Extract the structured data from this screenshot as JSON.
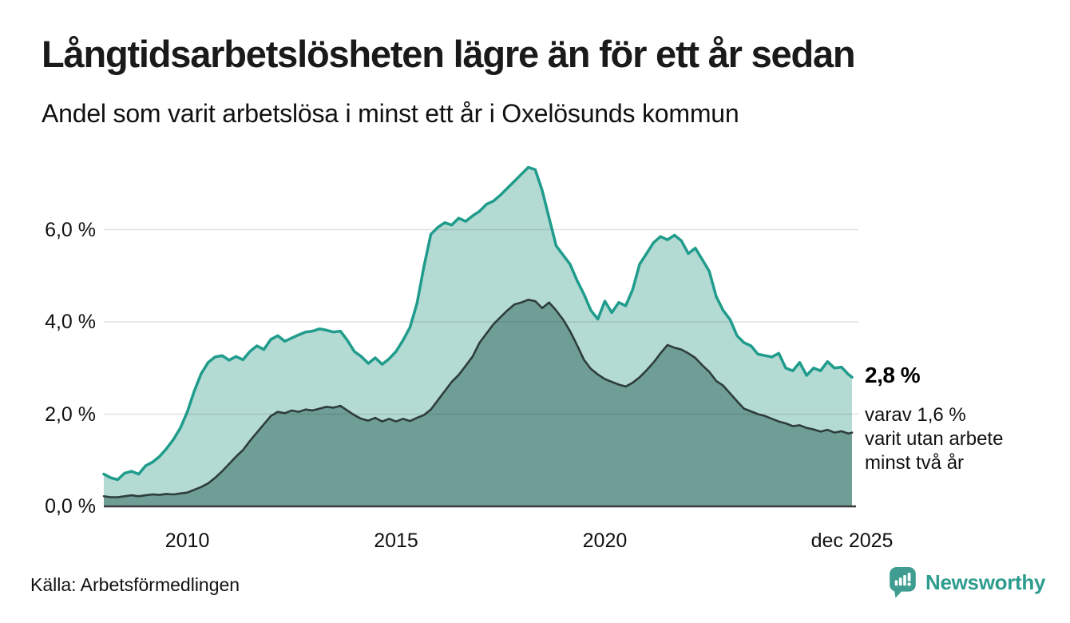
{
  "header": {
    "title": "Långtidsarbetslösheten lägre än för ett år sedan",
    "subtitle": "Andel som varit arbetslösa i minst ett år i Oxelösunds kommun"
  },
  "chart_data": {
    "type": "area",
    "title": "Långtidsarbetslösheten lägre än för ett år sedan",
    "subtitle": "Andel som varit arbetslösa i minst ett år i Oxelösunds kommun",
    "unit": "%",
    "x_start_year": 2008,
    "x_step_months": 2,
    "xlim": [
      2008,
      2025.92
    ],
    "ylim": [
      0,
      7.5
    ],
    "grid": true,
    "yticks": [
      {
        "value": 0,
        "label": "0,0 %"
      },
      {
        "value": 2,
        "label": "2,0 %"
      },
      {
        "value": 4,
        "label": "4,0 %"
      },
      {
        "value": 6,
        "label": "6,0 %"
      }
    ],
    "xticks": [
      {
        "year": 2010,
        "label": "2010"
      },
      {
        "year": 2015,
        "label": "2015"
      },
      {
        "year": 2020,
        "label": "2020"
      },
      {
        "year": 2025.92,
        "label": "dec 2025"
      }
    ],
    "series": [
      {
        "name": "Andel arbetslösa minst ett år",
        "stroke": "#1F9C8C",
        "fill": "#B4DAD4",
        "stroke_width": 3.5,
        "values": [
          0.7,
          0.62,
          0.58,
          0.72,
          0.76,
          0.7,
          0.88,
          0.96,
          1.08,
          1.25,
          1.45,
          1.7,
          2.05,
          2.5,
          2.88,
          3.12,
          3.24,
          3.27,
          3.17,
          3.25,
          3.18,
          3.36,
          3.48,
          3.4,
          3.62,
          3.7,
          3.58,
          3.65,
          3.72,
          3.78,
          3.8,
          3.85,
          3.82,
          3.78,
          3.8,
          3.6,
          3.36,
          3.25,
          3.1,
          3.22,
          3.08,
          3.2,
          3.36,
          3.6,
          3.88,
          4.4,
          5.2,
          5.9,
          6.05,
          6.15,
          6.1,
          6.25,
          6.18,
          6.3,
          6.4,
          6.55,
          6.62,
          6.75,
          6.9,
          7.05,
          7.2,
          7.35,
          7.3,
          6.85,
          6.25,
          5.65,
          5.45,
          5.25,
          4.9,
          4.6,
          4.25,
          4.06,
          4.45,
          4.2,
          4.42,
          4.35,
          4.7,
          5.25,
          5.48,
          5.72,
          5.85,
          5.78,
          5.88,
          5.76,
          5.48,
          5.6,
          5.35,
          5.1,
          4.55,
          4.25,
          4.05,
          3.7,
          3.55,
          3.48,
          3.3,
          3.27,
          3.24,
          3.32,
          3.0,
          2.94,
          3.12,
          2.84,
          3.0,
          2.94,
          3.14,
          3.0,
          3.02,
          2.86,
          2.8
        ]
      },
      {
        "name": "Andel arbetslösa minst två år",
        "stroke": "#2E3D3B",
        "fill": "#6F9E97",
        "stroke_width": 2.6,
        "values": [
          0.22,
          0.2,
          0.2,
          0.22,
          0.24,
          0.22,
          0.24,
          0.26,
          0.25,
          0.27,
          0.26,
          0.28,
          0.3,
          0.36,
          0.42,
          0.5,
          0.62,
          0.76,
          0.92,
          1.08,
          1.22,
          1.42,
          1.6,
          1.78,
          1.96,
          2.05,
          2.02,
          2.08,
          2.05,
          2.1,
          2.08,
          2.12,
          2.16,
          2.14,
          2.18,
          2.08,
          1.98,
          1.9,
          1.86,
          1.92,
          1.84,
          1.9,
          1.84,
          1.9,
          1.85,
          1.92,
          1.98,
          2.1,
          2.3,
          2.5,
          2.7,
          2.85,
          3.05,
          3.25,
          3.55,
          3.75,
          3.95,
          4.1,
          4.25,
          4.38,
          4.42,
          4.48,
          4.45,
          4.3,
          4.42,
          4.25,
          4.05,
          3.8,
          3.5,
          3.18,
          2.98,
          2.86,
          2.76,
          2.7,
          2.64,
          2.6,
          2.68,
          2.8,
          2.95,
          3.12,
          3.32,
          3.5,
          3.44,
          3.4,
          3.32,
          3.22,
          3.06,
          2.92,
          2.72,
          2.62,
          2.45,
          2.28,
          2.12,
          2.06,
          2.0,
          1.96,
          1.9,
          1.84,
          1.8,
          1.74,
          1.76,
          1.7,
          1.67,
          1.62,
          1.66,
          1.6,
          1.63,
          1.58,
          1.6
        ]
      }
    ],
    "annotations": {
      "end_value_label": "2,8 %",
      "secondary_note": "varav 1,6 %\nvarit utan arbete\nminst två år"
    },
    "legend_position": "none"
  },
  "footer": {
    "source": "Källa: Arbetsförmedlingen",
    "brand": "Newsworthy"
  },
  "colors": {
    "accent_teal": "#1F9C8C",
    "fill_light": "#B4DAD4",
    "fill_dark": "#6F9E97",
    "stroke_dark": "#2E3D3B",
    "gridline": "#dcdcdc",
    "axis_line": "#3a3a3a",
    "brand_teal": "#2E9C8E",
    "background": "#ffffff"
  }
}
